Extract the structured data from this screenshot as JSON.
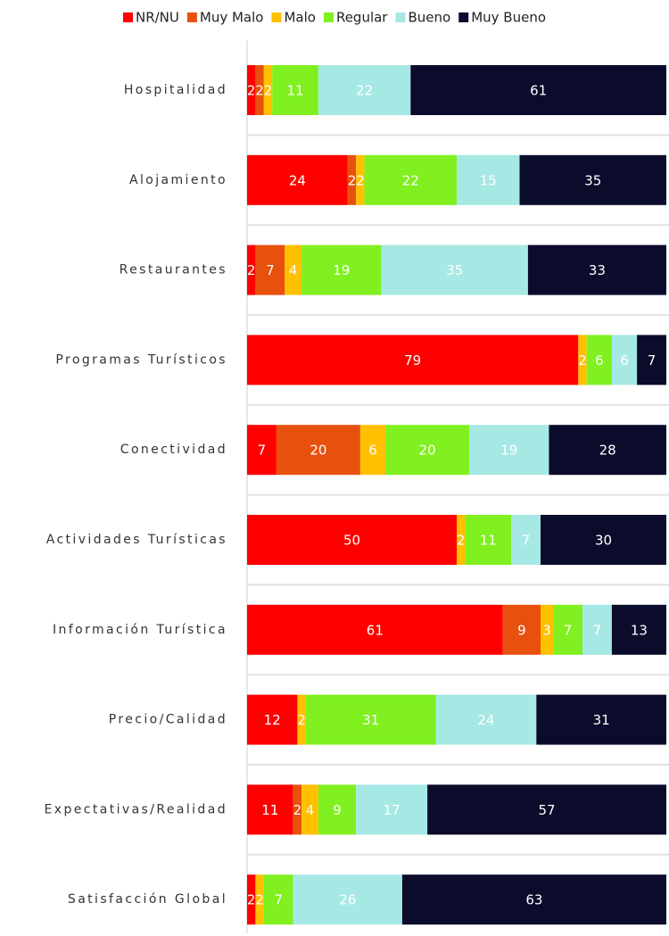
{
  "chart_data": {
    "type": "stacked_barh",
    "categories": [
      "Hospitalidad",
      "Alojamiento",
      "Restaurantes",
      "Programas Turísticos",
      "Conectividad",
      "Actividades Turísticas",
      "Información Turística",
      "Precio/Calidad",
      "Expectativas/Realidad",
      "Satisfacción Global"
    ],
    "series": [
      {
        "name": "NR/NU",
        "color": "#ff0000",
        "values": [
          2,
          24,
          2,
          79,
          7,
          50,
          61,
          12,
          11,
          2
        ]
      },
      {
        "name": "Muy Malo",
        "color": "#e8500e",
        "values": [
          2,
          2,
          7,
          null,
          20,
          null,
          9,
          null,
          2,
          null
        ]
      },
      {
        "name": "Malo",
        "color": "#ffc000",
        "values": [
          2,
          2,
          4,
          2,
          6,
          2,
          3,
          2,
          4,
          2
        ]
      },
      {
        "name": "Regular",
        "color": "#80f020",
        "values": [
          11,
          22,
          19,
          6,
          20,
          11,
          7,
          31,
          9,
          7
        ]
      },
      {
        "name": "Bueno",
        "color": "#a6e8e4",
        "values": [
          22,
          15,
          35,
          6,
          19,
          7,
          7,
          24,
          17,
          26
        ]
      },
      {
        "name": "Muy Bueno",
        "color": "#0b0b2b",
        "values": [
          61,
          35,
          33,
          7,
          28,
          30,
          13,
          31,
          57,
          63
        ]
      }
    ],
    "xlim": [
      0,
      100
    ],
    "legend": "top"
  }
}
